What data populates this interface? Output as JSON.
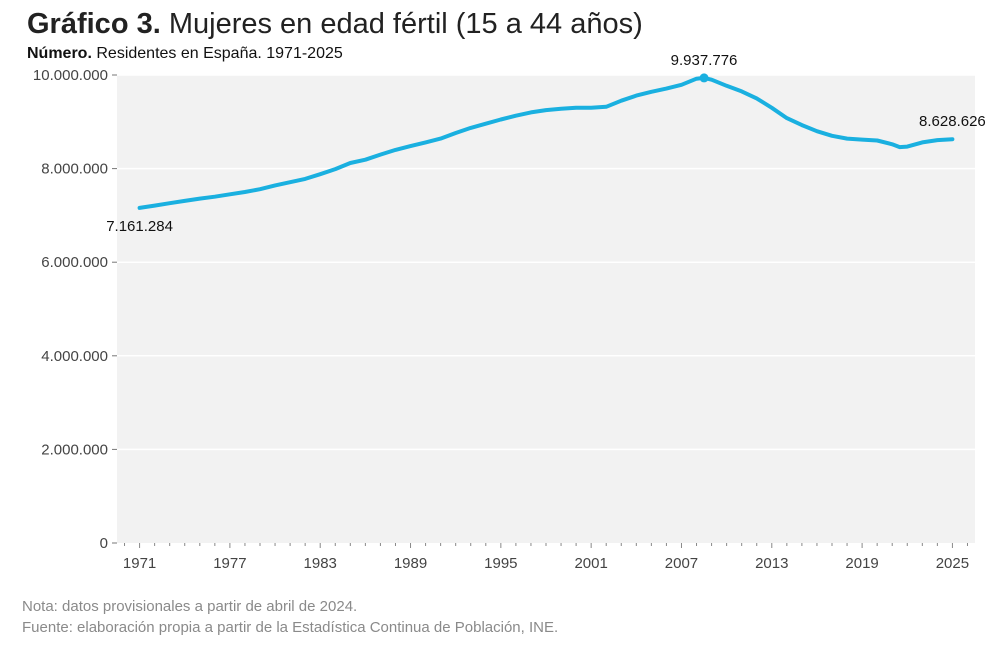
{
  "header": {
    "title_bold": "Gráfico 3.",
    "title_rest": "Mujeres en edad fértil (15 a 44 años)",
    "subtitle_bold": "Número.",
    "subtitle_rest": "Residentes en España. 1971-2025"
  },
  "footer": {
    "note": "Nota: datos provisionales a partir de abril de 2024.",
    "source": "Fuente: elaboración propia a partir de la Estadística Continua de Población, INE."
  },
  "colors": {
    "line": "#1ab0e0",
    "plot_bg": "#f2f2f2",
    "grid": "#ffffff"
  },
  "chart_data": {
    "type": "line",
    "xlim": [
      1969.5,
      2026.5
    ],
    "ylim": [
      0,
      10000000
    ],
    "y_ticks": [
      0,
      2000000,
      4000000,
      6000000,
      8000000,
      10000000
    ],
    "y_tick_labels": [
      "0",
      "2.000.000",
      "4.000.000",
      "6.000.000",
      "8.000.000",
      "10.000.000"
    ],
    "x_ticks": [
      1971,
      1977,
      1983,
      1989,
      1995,
      2001,
      2007,
      2013,
      2019,
      2025
    ],
    "x_tick_labels": [
      "1971",
      "1977",
      "1983",
      "1989",
      "1995",
      "2001",
      "2007",
      "2013",
      "2019",
      "2025"
    ],
    "grid": "horizontal",
    "series": [
      {
        "x": [
          1971,
          1972,
          1973,
          1974,
          1975,
          1976,
          1977,
          1978,
          1979,
          1980,
          1981,
          1982,
          1983,
          1984,
          1985,
          1986,
          1987,
          1988,
          1989,
          1990,
          1991,
          1992,
          1993,
          1994,
          1995,
          1996,
          1997,
          1998,
          1999,
          2000,
          2001,
          2002,
          2003,
          2004,
          2005,
          2006,
          2007,
          2008,
          2008.5,
          2009,
          2010,
          2011,
          2012,
          2013,
          2014,
          2015,
          2016,
          2017,
          2018,
          2019,
          2020,
          2021,
          2021.5,
          2022,
          2023,
          2024,
          2025
        ],
        "y": [
          7161284,
          7210000,
          7260000,
          7310000,
          7360000,
          7400000,
          7450000,
          7500000,
          7560000,
          7640000,
          7710000,
          7780000,
          7880000,
          7990000,
          8120000,
          8190000,
          8300000,
          8400000,
          8480000,
          8560000,
          8640000,
          8760000,
          8870000,
          8960000,
          9050000,
          9130000,
          9200000,
          9250000,
          9280000,
          9300000,
          9300000,
          9320000,
          9450000,
          9560000,
          9640000,
          9710000,
          9790000,
          9920000,
          9937776,
          9900000,
          9770000,
          9650000,
          9500000,
          9300000,
          9080000,
          8930000,
          8800000,
          8700000,
          8640000,
          8620000,
          8600000,
          8520000,
          8460000,
          8470000,
          8560000,
          8610000,
          8628626
        ]
      }
    ],
    "annotations": [
      {
        "x": 1971,
        "y": 7161284,
        "text": "7.161.284",
        "position": "below",
        "marker": false
      },
      {
        "x": 2008.5,
        "y": 9937776,
        "text": "9.937.776",
        "position": "above",
        "marker": true
      },
      {
        "x": 2025,
        "y": 8628626,
        "text": "8.628.626",
        "position": "above",
        "marker": false
      }
    ]
  }
}
